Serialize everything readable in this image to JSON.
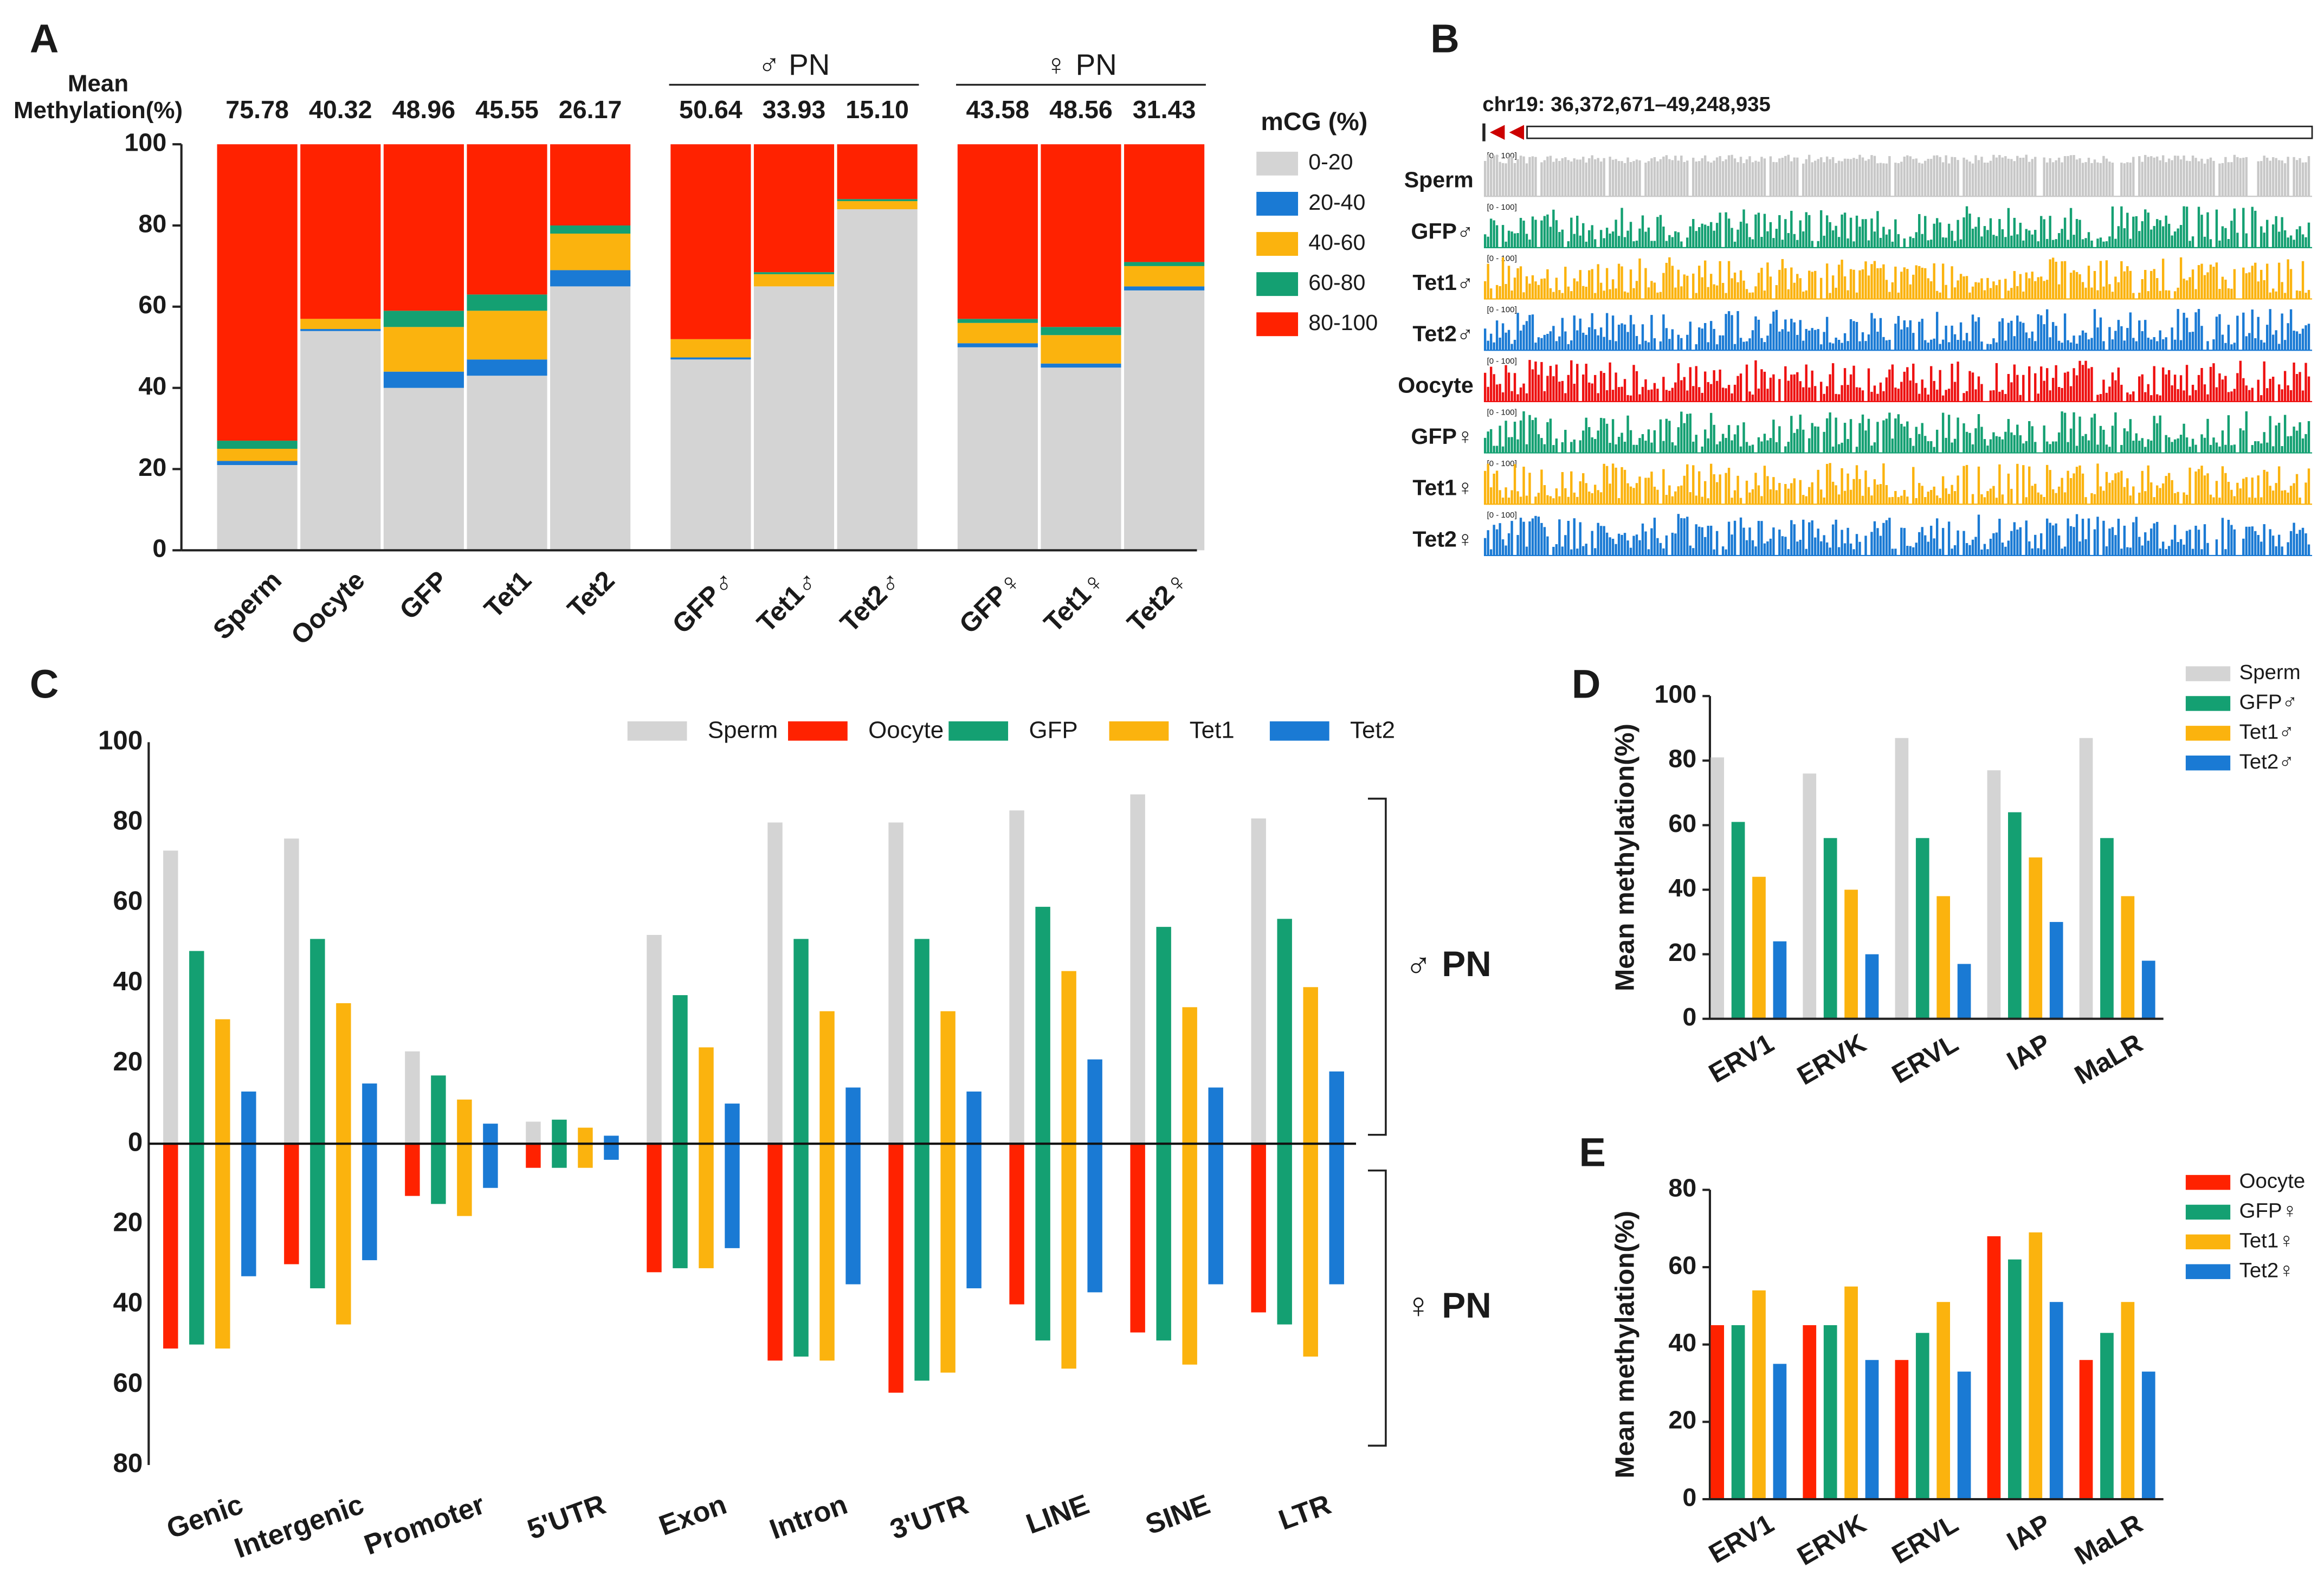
{
  "chart_data": [
    {
      "type": "stacked_bar",
      "panel": "A",
      "categories": [
        "Sperm",
        "Oocyte",
        "GFP",
        "Tet1",
        "Tet2",
        "GFP♂",
        "Tet1♂",
        "Tet2♂",
        "GFP♀",
        "Tet1♀",
        "Tet2♀"
      ],
      "groups": [
        {
          "label": "♂ PN",
          "members": [
            "GFP♂",
            "Tet1♂",
            "Tet2♂"
          ]
        },
        {
          "label": "♀ PN",
          "members": [
            "GFP♀",
            "Tet1♀",
            "Tet2♀"
          ]
        }
      ],
      "annotation": {
        "lines": [
          "Mean",
          "Methylation(%)"
        ],
        "values": [
          75.78,
          40.32,
          48.96,
          45.55,
          26.17,
          50.64,
          33.93,
          15.1,
          43.58,
          48.56,
          31.43
        ],
        "value_labels": [
          "75.78",
          "40.32",
          "48.96",
          "45.55",
          "26.17",
          "50.64",
          "33.93",
          "15.10",
          "43.58",
          "48.56",
          "31.43"
        ]
      },
      "legend_title": "mCG (%)",
      "series": [
        {
          "name": "0-20",
          "color": "#d4d4d4",
          "values": [
            21,
            54,
            40,
            43,
            65,
            47,
            65,
            84,
            50,
            45,
            64
          ]
        },
        {
          "name": "20-40",
          "color": "#1a7ad4",
          "values": [
            1,
            0.5,
            4,
            4,
            4,
            0.5,
            0,
            0,
            1,
            1,
            1
          ]
        },
        {
          "name": "40-60",
          "color": "#fbb30e",
          "values": [
            3,
            2.5,
            11,
            12,
            9,
            4.5,
            3,
            2,
            5,
            7,
            5
          ]
        },
        {
          "name": "60-80",
          "color": "#14a072",
          "values": [
            2,
            0,
            4,
            4,
            2,
            0,
            0.5,
            0.5,
            1,
            2,
            1
          ]
        },
        {
          "name": "80-100",
          "color": "#ff2200",
          "values": [
            73,
            43,
            41,
            37,
            20,
            48,
            31.5,
            13.5,
            43,
            45,
            29
          ]
        }
      ],
      "ylim": [
        0,
        100
      ],
      "yticks": [
        0,
        20,
        40,
        60,
        80,
        100
      ]
    },
    {
      "type": "diverging_bar",
      "panel": "C",
      "categories": [
        "Genic",
        "Intergenic",
        "Promoter",
        "5'UTR",
        "Exon",
        "Intron",
        "3'UTR",
        "LINE",
        "SINE",
        "LTR"
      ],
      "legend": [
        {
          "name": "Sperm",
          "color": "#d4d4d4"
        },
        {
          "name": "Oocyte",
          "color": "#ff2200"
        },
        {
          "name": "GFP",
          "color": "#14a072"
        },
        {
          "name": "Tet1",
          "color": "#fbb30e"
        },
        {
          "name": "Tet2",
          "color": "#1a7ad4"
        }
      ],
      "sides": [
        {
          "label": "♂ PN",
          "bars": [
            {
              "series": "Sperm",
              "values": [
                73,
                76,
                23,
                5.5,
                52,
                80,
                80,
                83,
                87,
                81
              ]
            },
            {
              "series": "GFP",
              "values": [
                48,
                51,
                17,
                6,
                37,
                51,
                51,
                59,
                54,
                56
              ]
            },
            {
              "series": "Tet1",
              "values": [
                31,
                35,
                11,
                4,
                24,
                33,
                33,
                43,
                34,
                39
              ]
            },
            {
              "series": "Tet2",
              "values": [
                13,
                15,
                5,
                2,
                10,
                14,
                13,
                21,
                14,
                18
              ]
            }
          ]
        },
        {
          "label": "♀ PN",
          "bars": [
            {
              "series": "Oocyte",
              "values": [
                -51,
                -30,
                -13,
                -6,
                -32,
                -54,
                -62,
                -40,
                -47,
                -42
              ]
            },
            {
              "series": "GFP",
              "values": [
                -50,
                -36,
                -15,
                -6,
                -31,
                -53,
                -59,
                -49,
                -49,
                -45
              ]
            },
            {
              "series": "Tet1",
              "values": [
                -51,
                -45,
                -18,
                -6,
                -31,
                -54,
                -57,
                -56,
                -55,
                -53
              ]
            },
            {
              "series": "Tet2",
              "values": [
                -33,
                -29,
                -11,
                -4,
                -26,
                -35,
                -36,
                -37,
                -35,
                -35
              ]
            }
          ]
        }
      ],
      "ylim": [
        -80,
        100
      ],
      "yticks": [
        {
          "value": -80,
          "label": "80"
        },
        {
          "value": -60,
          "label": "60"
        },
        {
          "value": -40,
          "label": "40"
        },
        {
          "value": -20,
          "label": "20"
        },
        0,
        20,
        40,
        60,
        80,
        100
      ]
    },
    {
      "type": "grouped_bar",
      "panel": "D",
      "ylabel": "Mean methylation(%)",
      "categories": [
        "ERV1",
        "ERVK",
        "ERVL",
        "IAP",
        "MaLR"
      ],
      "series": [
        {
          "name": "Sperm",
          "color": "#d4d4d4",
          "values": [
            81,
            76,
            87,
            77,
            87
          ]
        },
        {
          "name": "GFP♂",
          "color": "#14a072",
          "values": [
            61,
            56,
            56,
            64,
            56
          ]
        },
        {
          "name": "Tet1♂",
          "color": "#fbb30e",
          "values": [
            44,
            40,
            38,
            50,
            38
          ]
        },
        {
          "name": "Tet2♂",
          "color": "#1a7ad4",
          "values": [
            24,
            20,
            17,
            30,
            18
          ]
        }
      ],
      "ylim": [
        0,
        100
      ],
      "yticks": [
        0,
        20,
        40,
        60,
        80,
        100
      ]
    },
    {
      "type": "grouped_bar",
      "panel": "E",
      "ylabel": "Mean methylation(%)",
      "categories": [
        "ERV1",
        "ERVK",
        "ERVL",
        "IAP",
        "MaLR"
      ],
      "series": [
        {
          "name": "Oocyte",
          "color": "#ff2200",
          "values": [
            45,
            45,
            36,
            68,
            36
          ]
        },
        {
          "name": "GFP♀",
          "color": "#14a072",
          "values": [
            45,
            45,
            43,
            62,
            43
          ]
        },
        {
          "name": "Tet1♀",
          "color": "#fbb30e",
          "values": [
            54,
            55,
            51,
            69,
            51
          ]
        },
        {
          "name": "Tet2♀",
          "color": "#1a7ad4",
          "values": [
            35,
            36,
            33,
            51,
            33
          ]
        }
      ],
      "ylim": [
        0,
        80
      ],
      "yticks": [
        0,
        20,
        40,
        60,
        80
      ]
    }
  ],
  "browser": {
    "panel": "B",
    "region": "chr19: 36,372,671–49,248,935",
    "range_label": "[0 - 100]",
    "tracks": [
      {
        "name": "Sperm",
        "color": "#c8c8c8"
      },
      {
        "name": "GFP♂",
        "color": "#14a072"
      },
      {
        "name": "Tet1♂",
        "color": "#fbb30e"
      },
      {
        "name": "Tet2♂",
        "color": "#1a7ad4"
      },
      {
        "name": "Oocyte",
        "color": "#ee1111"
      },
      {
        "name": "GFP♀",
        "color": "#14a072"
      },
      {
        "name": "Tet1♀",
        "color": "#fbb30e"
      },
      {
        "name": "Tet2♀",
        "color": "#1a7ad4"
      }
    ]
  }
}
